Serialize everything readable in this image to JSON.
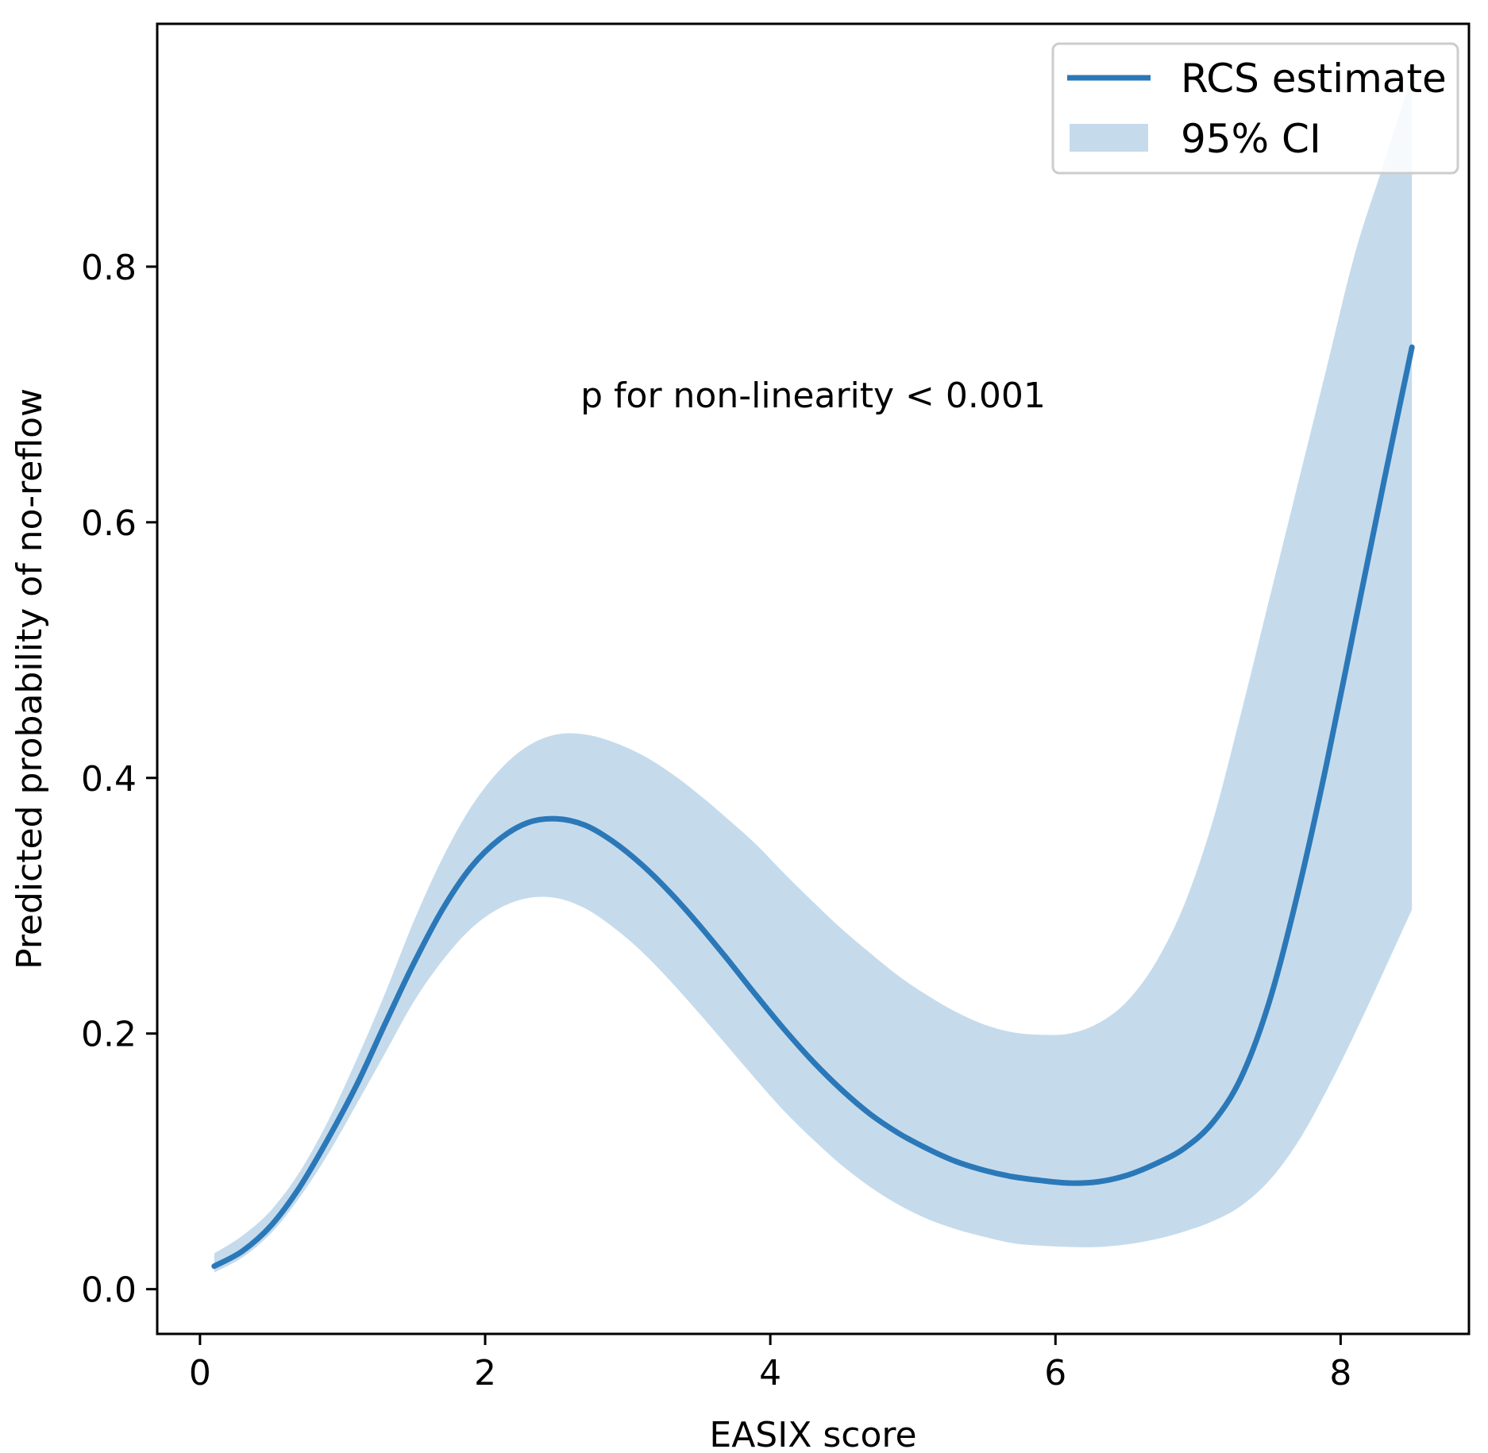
{
  "chart_data": {
    "type": "line",
    "title": "",
    "xlabel": "EASIX score",
    "ylabel": "Predicted probability of no-reflow",
    "xlim": [
      -0.3,
      8.9
    ],
    "ylim": [
      -0.035,
      0.99
    ],
    "xticks": [
      0,
      2,
      4,
      6,
      8
    ],
    "xtick_labels": [
      "0",
      "2",
      "4",
      "6",
      "8"
    ],
    "yticks": [
      0.0,
      0.2,
      0.4,
      0.6,
      0.8
    ],
    "ytick_labels": [
      "0.0",
      "0.2",
      "0.4",
      "0.6",
      "0.8"
    ],
    "grid": false,
    "annotation": {
      "text": "p for non-linearity < 0.001",
      "x": 4.3,
      "y": 0.69
    },
    "legend": {
      "placement": "top-right",
      "entries": [
        {
          "label": "RCS estimate",
          "kind": "line"
        },
        {
          "label": "95% CI",
          "kind": "band"
        }
      ]
    },
    "colors": {
      "line": "#2b78b8",
      "band": "#c5dbec",
      "frame": "#000000"
    },
    "series": [
      {
        "name": "RCS estimate",
        "x": [
          0.1,
          0.3,
          0.5,
          0.7,
          0.9,
          1.1,
          1.3,
          1.5,
          1.7,
          1.9,
          2.1,
          2.3,
          2.5,
          2.7,
          2.9,
          3.1,
          3.3,
          3.5,
          3.7,
          3.9,
          4.1,
          4.3,
          4.5,
          4.7,
          4.9,
          5.1,
          5.3,
          5.5,
          5.7,
          5.9,
          6.1,
          6.3,
          6.5,
          6.7,
          6.9,
          7.1,
          7.3,
          7.5,
          7.7,
          7.9,
          8.1,
          8.3,
          8.5
        ],
        "y": [
          0.018,
          0.03,
          0.05,
          0.08,
          0.118,
          0.16,
          0.208,
          0.255,
          0.297,
          0.33,
          0.352,
          0.365,
          0.368,
          0.363,
          0.35,
          0.332,
          0.31,
          0.285,
          0.258,
          0.23,
          0.203,
          0.178,
          0.156,
          0.137,
          0.122,
          0.11,
          0.1,
          0.093,
          0.088,
          0.085,
          0.083,
          0.084,
          0.089,
          0.098,
          0.11,
          0.13,
          0.165,
          0.225,
          0.31,
          0.41,
          0.52,
          0.63,
          0.737
        ]
      },
      {
        "name": "95% CI lower",
        "x": [
          0.1,
          0.3,
          0.5,
          0.7,
          0.9,
          1.1,
          1.3,
          1.5,
          1.7,
          1.9,
          2.1,
          2.3,
          2.5,
          2.7,
          2.9,
          3.1,
          3.3,
          3.5,
          3.7,
          3.9,
          4.1,
          4.3,
          4.5,
          4.7,
          4.9,
          5.1,
          5.3,
          5.5,
          5.7,
          5.9,
          6.1,
          6.3,
          6.5,
          6.7,
          6.9,
          7.1,
          7.3,
          7.5,
          7.7,
          7.9,
          8.1,
          8.3,
          8.5
        ],
        "y": [
          0.013,
          0.025,
          0.044,
          0.072,
          0.106,
          0.145,
          0.185,
          0.225,
          0.257,
          0.282,
          0.298,
          0.306,
          0.306,
          0.298,
          0.283,
          0.264,
          0.241,
          0.216,
          0.19,
          0.164,
          0.139,
          0.117,
          0.097,
          0.08,
          0.066,
          0.055,
          0.047,
          0.041,
          0.036,
          0.034,
          0.033,
          0.033,
          0.035,
          0.039,
          0.045,
          0.053,
          0.065,
          0.085,
          0.115,
          0.155,
          0.2,
          0.248,
          0.297
        ]
      },
      {
        "name": "95% CI upper",
        "x": [
          0.1,
          0.3,
          0.5,
          0.7,
          0.9,
          1.1,
          1.3,
          1.5,
          1.7,
          1.9,
          2.1,
          2.3,
          2.5,
          2.7,
          2.9,
          3.1,
          3.3,
          3.5,
          3.7,
          3.9,
          4.1,
          4.3,
          4.5,
          4.7,
          4.9,
          5.1,
          5.3,
          5.5,
          5.7,
          5.9,
          6.1,
          6.3,
          6.5,
          6.7,
          6.9,
          7.1,
          7.3,
          7.5,
          7.7,
          7.9,
          8.1,
          8.3,
          8.5
        ],
        "y": [
          0.028,
          0.042,
          0.062,
          0.092,
          0.132,
          0.18,
          0.232,
          0.288,
          0.337,
          0.377,
          0.406,
          0.425,
          0.434,
          0.434,
          0.428,
          0.418,
          0.404,
          0.387,
          0.368,
          0.348,
          0.325,
          0.303,
          0.282,
          0.263,
          0.245,
          0.23,
          0.217,
          0.207,
          0.201,
          0.199,
          0.2,
          0.208,
          0.225,
          0.255,
          0.3,
          0.365,
          0.45,
          0.54,
          0.63,
          0.72,
          0.81,
          0.88,
          0.95
        ]
      }
    ]
  }
}
